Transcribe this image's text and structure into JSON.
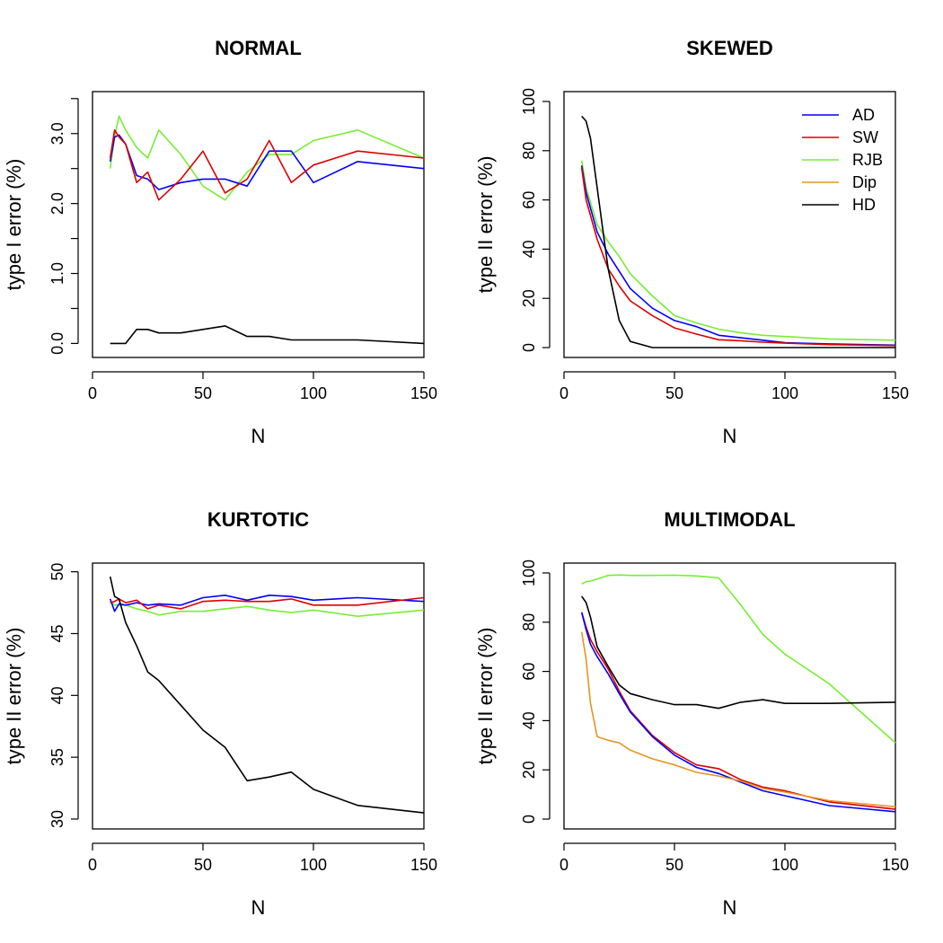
{
  "figure": {
    "xlabel": "N"
  },
  "legend": [
    {
      "name": "AD",
      "color": "#0000ff"
    },
    {
      "name": "SW",
      "color": "#dd0000"
    },
    {
      "name": "RJB",
      "color": "#77ee33"
    },
    {
      "name": "Dip",
      "color": "#e69520"
    },
    {
      "name": "HD",
      "color": "#000000"
    }
  ],
  "chart_data": [
    {
      "type": "line",
      "title": "NORMAL",
      "xlabel": "N",
      "ylabel": "type I error (%)",
      "xlim": [
        0,
        150
      ],
      "ylim": [
        -0.2,
        3.6
      ],
      "xticks": [
        0,
        50,
        100,
        150
      ],
      "yticks": [
        0.0,
        1.0,
        2.0,
        3.0
      ],
      "ytick_labels": [
        "0.0",
        "1.0",
        "2.0",
        "3.0"
      ],
      "yminor": [
        0.5,
        1.5,
        2.5,
        3.5
      ],
      "series": [
        {
          "name": "RJB",
          "color": "#77ee33",
          "x": [
            8,
            10,
            12,
            15,
            20,
            25,
            30,
            40,
            50,
            60,
            70,
            80,
            90,
            100,
            120,
            150
          ],
          "y": [
            2.5,
            2.95,
            3.25,
            3.05,
            2.8,
            2.65,
            3.05,
            2.7,
            2.25,
            2.05,
            2.45,
            2.7,
            2.7,
            2.9,
            3.05,
            2.65
          ]
        },
        {
          "name": "AD",
          "color": "#0000ff",
          "x": [
            8,
            10,
            12,
            15,
            20,
            25,
            30,
            40,
            50,
            60,
            70,
            80,
            90,
            100,
            120,
            150
          ],
          "y": [
            2.6,
            2.95,
            2.98,
            2.85,
            2.4,
            2.35,
            2.2,
            2.3,
            2.35,
            2.35,
            2.25,
            2.75,
            2.75,
            2.3,
            2.6,
            2.5
          ]
        },
        {
          "name": "SW",
          "color": "#dd0000",
          "x": [
            8,
            10,
            12,
            15,
            20,
            25,
            30,
            40,
            50,
            60,
            70,
            80,
            90,
            100,
            120,
            150
          ],
          "y": [
            2.65,
            3.05,
            2.95,
            2.85,
            2.3,
            2.45,
            2.05,
            2.35,
            2.75,
            2.15,
            2.35,
            2.9,
            2.3,
            2.55,
            2.75,
            2.65
          ]
        },
        {
          "name": "HD",
          "color": "#000000",
          "x": [
            8,
            15,
            20,
            25,
            30,
            40,
            60,
            70,
            80,
            90,
            120,
            150
          ],
          "y": [
            0.0,
            0.0,
            0.2,
            0.2,
            0.15,
            0.15,
            0.25,
            0.1,
            0.1,
            0.05,
            0.05,
            0.0
          ]
        }
      ]
    },
    {
      "type": "line",
      "title": "SKEWED",
      "xlabel": "N",
      "ylabel": "type II error (%)",
      "xlim": [
        0,
        150
      ],
      "ylim": [
        -4,
        104
      ],
      "xticks": [
        0,
        50,
        100,
        150
      ],
      "yticks": [
        0,
        20,
        40,
        60,
        80,
        100
      ],
      "ytick_labels": [
        "0",
        "20",
        "40",
        "60",
        "80",
        "100"
      ],
      "show_legend": true,
      "series": [
        {
          "name": "RJB",
          "color": "#77ee33",
          "x": [
            8,
            10,
            15,
            20,
            25,
            30,
            40,
            50,
            60,
            70,
            80,
            90,
            100,
            120,
            150
          ],
          "y": [
            76,
            65,
            50,
            43,
            37,
            30,
            21,
            13,
            10,
            7.5,
            6,
            5,
            4.5,
            3.5,
            3
          ]
        },
        {
          "name": "AD",
          "color": "#0000ff",
          "x": [
            8,
            10,
            15,
            20,
            25,
            30,
            40,
            50,
            60,
            70,
            80,
            90,
            100,
            120,
            150
          ],
          "y": [
            74,
            63,
            47,
            38,
            31,
            24,
            16,
            11,
            8.5,
            5,
            4,
            3,
            2,
            1.5,
            1
          ]
        },
        {
          "name": "SW",
          "color": "#dd0000",
          "x": [
            8,
            10,
            15,
            20,
            25,
            30,
            40,
            50,
            60,
            70,
            80,
            90,
            100,
            120,
            150
          ],
          "y": [
            73,
            60,
            44,
            32,
            25,
            19,
            13,
            8,
            5.5,
            3.2,
            2.8,
            2.2,
            1.8,
            1.2,
            0.8
          ]
        },
        {
          "name": "HD",
          "color": "#000000",
          "x": [
            8,
            10,
            12,
            15,
            18,
            20,
            25,
            30,
            40,
            50,
            100,
            150
          ],
          "y": [
            94,
            92,
            85,
            65,
            45,
            32,
            11,
            2.5,
            0,
            0,
            0,
            0
          ]
        }
      ]
    },
    {
      "type": "line",
      "title": "KURTOTIC",
      "xlabel": "N",
      "ylabel": "type II error (%)",
      "xlim": [
        0,
        150
      ],
      "ylim": [
        29.2,
        50.7
      ],
      "xticks": [
        0,
        50,
        100,
        150
      ],
      "yticks": [
        30,
        35,
        40,
        45,
        50
      ],
      "ytick_labels": [
        "30",
        "35",
        "40",
        "45",
        "50"
      ],
      "series": [
        {
          "name": "RJB",
          "color": "#77ee33",
          "x": [
            8,
            10,
            15,
            20,
            25,
            30,
            40,
            50,
            60,
            70,
            80,
            90,
            100,
            120,
            150
          ],
          "y": [
            47.6,
            47.3,
            47.3,
            47.0,
            46.8,
            46.5,
            46.8,
            46.8,
            47.0,
            47.2,
            46.9,
            46.7,
            46.9,
            46.4,
            46.9
          ]
        },
        {
          "name": "AD",
          "color": "#0000ff",
          "x": [
            8,
            10,
            12,
            15,
            20,
            25,
            30,
            40,
            50,
            60,
            70,
            80,
            90,
            100,
            120,
            150
          ],
          "y": [
            47.8,
            46.8,
            47.4,
            47.3,
            47.5,
            47.3,
            47.4,
            47.3,
            47.9,
            48.1,
            47.7,
            48.1,
            48.0,
            47.7,
            47.9,
            47.6
          ]
        },
        {
          "name": "SW",
          "color": "#dd0000",
          "x": [
            8,
            10,
            12,
            15,
            20,
            25,
            30,
            40,
            50,
            60,
            70,
            80,
            90,
            100,
            120,
            150
          ],
          "y": [
            47.5,
            47.6,
            47.8,
            47.5,
            47.7,
            47.0,
            47.3,
            47.0,
            47.6,
            47.7,
            47.6,
            47.6,
            47.8,
            47.3,
            47.3,
            47.9
          ]
        },
        {
          "name": "HD",
          "color": "#000000",
          "x": [
            8,
            10,
            12,
            15,
            20,
            25,
            30,
            40,
            50,
            60,
            70,
            80,
            90,
            100,
            120,
            150
          ],
          "y": [
            49.6,
            48.0,
            47.8,
            45.9,
            44.0,
            41.9,
            41.2,
            39.2,
            37.2,
            35.8,
            33.1,
            33.4,
            33.8,
            32.4,
            31.1,
            30.5
          ]
        }
      ]
    },
    {
      "type": "line",
      "title": "MULTIMODAL",
      "xlabel": "N",
      "ylabel": "type II error (%)",
      "xlim": [
        0,
        150
      ],
      "ylim": [
        -4,
        104
      ],
      "xticks": [
        0,
        50,
        100,
        150
      ],
      "yticks": [
        0,
        20,
        40,
        60,
        80,
        100
      ],
      "ytick_labels": [
        "0",
        "20",
        "40",
        "60",
        "80",
        "100"
      ],
      "series": [
        {
          "name": "RJB",
          "color": "#77ee33",
          "x": [
            8,
            10,
            12,
            15,
            20,
            25,
            30,
            40,
            50,
            60,
            70,
            80,
            90,
            100,
            120,
            150
          ],
          "y": [
            95.5,
            96.5,
            96.7,
            97.5,
            99,
            99.2,
            99,
            99,
            99.1,
            98.8,
            98,
            87,
            75,
            67,
            55,
            31
          ]
        },
        {
          "name": "HD",
          "color": "#000000",
          "x": [
            8,
            10,
            12,
            15,
            20,
            25,
            30,
            40,
            50,
            60,
            70,
            80,
            90,
            100,
            120,
            150
          ],
          "y": [
            90.5,
            88,
            82,
            70,
            62,
            54.5,
            51,
            48.5,
            46.5,
            46.5,
            45,
            47.5,
            48.5,
            47,
            47,
            47.5
          ]
        },
        {
          "name": "SW",
          "color": "#dd0000",
          "x": [
            8,
            10,
            12,
            15,
            20,
            25,
            30,
            40,
            50,
            60,
            70,
            80,
            90,
            100,
            120,
            150
          ],
          "y": [
            84,
            78,
            73,
            68,
            61,
            52,
            44,
            34,
            27,
            22,
            20.5,
            16,
            13,
            11.5,
            7,
            4
          ]
        },
        {
          "name": "AD",
          "color": "#0000ff",
          "x": [
            8,
            10,
            12,
            15,
            20,
            25,
            30,
            40,
            50,
            60,
            70,
            80,
            90,
            100,
            120,
            150
          ],
          "y": [
            84,
            77,
            71,
            66,
            59,
            51,
            43.5,
            33.5,
            26,
            21,
            18.5,
            15,
            11.5,
            9.5,
            5.5,
            3
          ]
        },
        {
          "name": "Dip",
          "color": "#e69520",
          "x": [
            8,
            10,
            12,
            15,
            20,
            25,
            30,
            40,
            50,
            60,
            70,
            80,
            90,
            100,
            120,
            150
          ],
          "y": [
            76,
            65,
            47,
            33.5,
            32,
            31,
            28,
            24.5,
            22,
            19,
            17.5,
            15.5,
            12.5,
            11,
            7.5,
            5
          ]
        }
      ]
    }
  ]
}
